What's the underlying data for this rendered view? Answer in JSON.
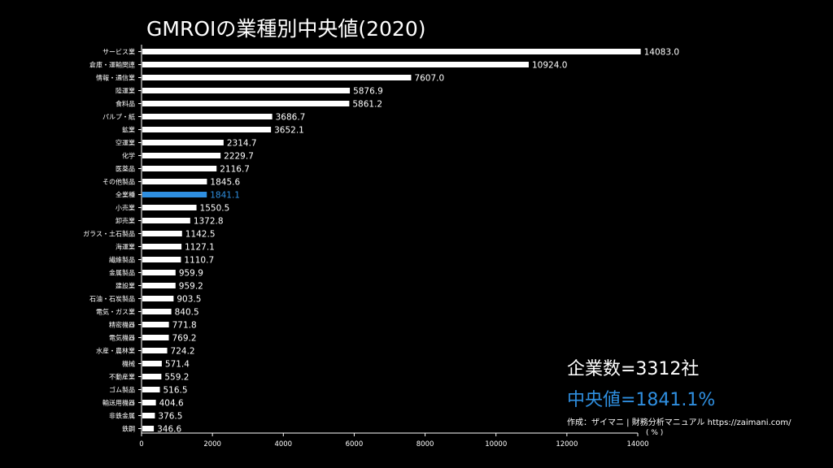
{
  "chart_data": {
    "type": "bar",
    "orientation": "horizontal",
    "title": "GMROIの業種別中央値(2020)",
    "categories": [
      "サービス業",
      "倉庫・運輸関連",
      "情報・通信業",
      "陸運業",
      "食料品",
      "パルプ・紙",
      "鉱業",
      "空運業",
      "化学",
      "医薬品",
      "その他製品",
      "全業種",
      "小売業",
      "卸売業",
      "ガラス・土石製品",
      "海運業",
      "繊維製品",
      "金属製品",
      "建設業",
      "石油・石炭製品",
      "電気・ガス業",
      "精密機器",
      "電気機器",
      "水産・農林業",
      "機械",
      "不動産業",
      "ゴム製品",
      "輸送用機器",
      "非鉄金属",
      "鉄鋼"
    ],
    "values": [
      14083.0,
      10924.0,
      7607.0,
      5876.9,
      5861.2,
      3686.7,
      3652.1,
      2314.7,
      2229.7,
      2116.7,
      1845.6,
      1841.1,
      1550.5,
      1372.8,
      1142.5,
      1127.1,
      1110.7,
      959.9,
      959.2,
      903.5,
      840.5,
      771.8,
      769.2,
      724.2,
      571.4,
      559.2,
      516.5,
      404.6,
      376.5,
      346.6
    ],
    "value_labels": [
      "14083.0",
      "10924.0",
      "7607.0",
      "5876.9",
      "5861.2",
      "3686.7",
      "3652.1",
      "2314.7",
      "2229.7",
      "2116.7",
      "1845.6",
      "1841.1",
      "1550.5",
      "1372.8",
      "1142.5",
      "1127.1",
      "1110.7",
      "959.9",
      "959.2",
      "903.5",
      "840.5",
      "771.8",
      "769.2",
      "724.2",
      "571.4",
      "559.2",
      "516.5",
      "404.6",
      "376.5",
      "346.6"
    ],
    "highlight_category": "全業種",
    "xlim": [
      0,
      14000
    ],
    "xticks": [
      0,
      2000,
      4000,
      6000,
      8000,
      10000,
      12000,
      14000
    ],
    "xunit": "( % )",
    "bar_color": "#ffffff",
    "highlight_color": "#2f8fe0",
    "background": "#000000",
    "grid": false
  },
  "stats": {
    "company_count": "企業数=3312社",
    "median": "中央値=1841.1%"
  },
  "credit": "作成：ザイマニ | 財務分析マニュアル https://zaimani.com/"
}
